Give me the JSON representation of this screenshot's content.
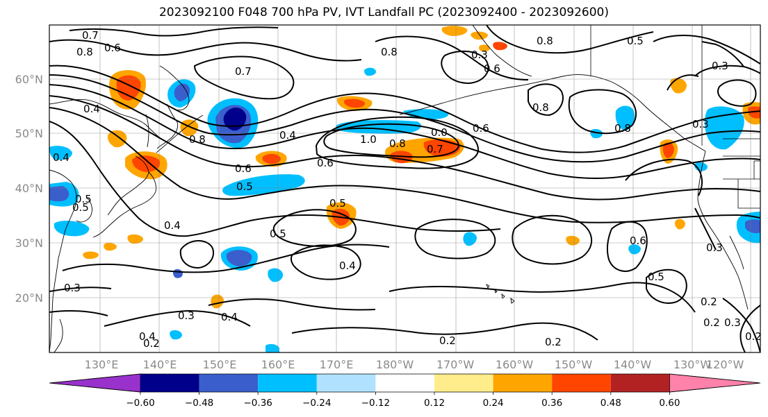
{
  "title": "2023092100 F048 700 hPa PV, IVT Landfall PC (2023092400 - 2023092600)",
  "map": {
    "lat_labels": [
      "60°N",
      "50°N",
      "40°N",
      "30°N",
      "20°N"
    ],
    "lon_labels": [
      "130°E",
      "140°E",
      "150°E",
      "160°E",
      "170°E",
      "180°W",
      "170°W",
      "160°W",
      "150°W",
      "140°W",
      "130°W",
      "120°W"
    ],
    "contour_labels": [
      {
        "text": "0.7"
      },
      {
        "text": "0.6"
      },
      {
        "text": "0.8"
      },
      {
        "text": "0.8"
      },
      {
        "text": "0.7"
      },
      {
        "text": "0.5"
      },
      {
        "text": "0.3"
      },
      {
        "text": "0.6"
      },
      {
        "text": "0.8"
      },
      {
        "text": "0.4"
      },
      {
        "text": "0.8"
      },
      {
        "text": "0.4"
      },
      {
        "text": "0.6"
      },
      {
        "text": "0.5"
      },
      {
        "text": "1.0"
      },
      {
        "text": "0.8"
      },
      {
        "text": "0.7"
      },
      {
        "text": "0.6"
      },
      {
        "text": "0.0"
      },
      {
        "text": "0.6"
      },
      {
        "text": "0.8"
      },
      {
        "text": "0.8"
      },
      {
        "text": "0.3"
      },
      {
        "text": "0.4"
      },
      {
        "text": "0.5"
      },
      {
        "text": "0.4"
      },
      {
        "text": "0.5"
      },
      {
        "text": "0.5"
      },
      {
        "text": "0.4"
      },
      {
        "text": "0.6"
      },
      {
        "text": "0.3"
      },
      {
        "text": "0.5"
      },
      {
        "text": "0.3"
      },
      {
        "text": "0.3"
      },
      {
        "text": "0.4"
      },
      {
        "text": "0.4"
      },
      {
        "text": "0.2"
      },
      {
        "text": "0.2"
      },
      {
        "text": "0.2"
      },
      {
        "text": "0.2"
      },
      {
        "text": "0.3"
      },
      {
        "text": "0.2"
      },
      {
        "text": "0.5"
      },
      {
        "text": "0.3"
      },
      {
        "text": "0.2"
      }
    ]
  },
  "colorbar": {
    "colors": [
      "#9932cc",
      "#00008b",
      "#3a5fcd",
      "#00bfff",
      "#b0e2ff",
      "#ffffff",
      "#ffec8b",
      "#ffa500",
      "#ff4500",
      "#b22222",
      "#ff82ab"
    ],
    "tick_labels": [
      "−0.60",
      "−0.48",
      "−0.36",
      "−0.24",
      "−0.12",
      "0.12",
      "0.24",
      "0.36",
      "0.48",
      "0.60"
    ]
  }
}
